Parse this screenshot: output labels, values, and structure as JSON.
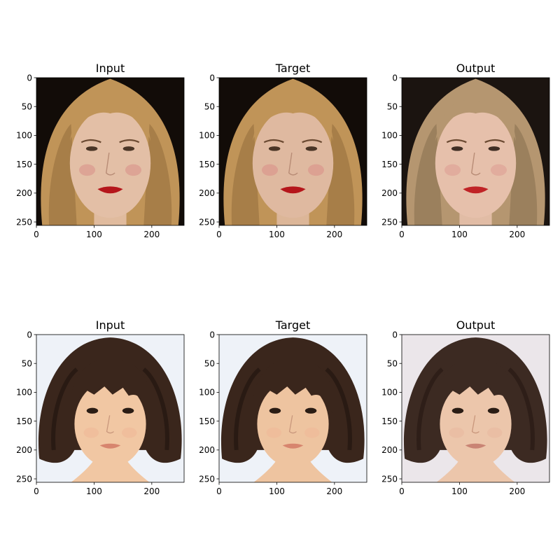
{
  "figure": {
    "rows": [
      {
        "panels": [
          {
            "title": "Input",
            "palette": {
              "bg": "#120c08",
              "hair": "#c09458",
              "hair_dark": "#8a6436",
              "skin": "#e3bfa6",
              "lips": "#b5161b",
              "eyes": "#4a3526",
              "cheek": "#d98e86"
            }
          },
          {
            "title": "Target",
            "palette": {
              "bg": "#120c08",
              "hair": "#c09458",
              "hair_dark": "#8a6436",
              "skin": "#dfb9a0",
              "lips": "#b5161b",
              "eyes": "#4a3526",
              "cheek": "#d98e86"
            }
          },
          {
            "title": "Output",
            "palette": {
              "bg": "#1b1410",
              "hair": "#b59670",
              "hair_dark": "#7d6548",
              "skin": "#e6c0ab",
              "lips": "#c02326",
              "eyes": "#3f2e24",
              "cheek": "#dd9a92"
            }
          }
        ]
      },
      {
        "panels": [
          {
            "title": "Input",
            "palette": {
              "bg": "#eef2f8",
              "hair": "#3a261c",
              "hair_dark": "#1e130d",
              "skin": "#f1c7a3",
              "lips": "#d7856e",
              "eyes": "#2a1c14",
              "cheek": "#efb596"
            }
          },
          {
            "title": "Target",
            "palette": {
              "bg": "#eef2f8",
              "hair": "#3a261c",
              "hair_dark": "#1e130d",
              "skin": "#eec4a0",
              "lips": "#d7856e",
              "eyes": "#2a1c14",
              "cheek": "#efb596"
            }
          },
          {
            "title": "Output",
            "palette": {
              "bg": "#ebe6ea",
              "hair": "#3c2a22",
              "hair_dark": "#241812",
              "skin": "#ecc6ab",
              "lips": "#c98474",
              "eyes": "#2a1c14",
              "cheek": "#e8b69e"
            }
          }
        ]
      }
    ]
  },
  "chart_data": {
    "type": "image-grid",
    "xlim": [
      0,
      256
    ],
    "ylim": [
      256,
      0
    ],
    "xticks": [
      0,
      100,
      200
    ],
    "yticks": [
      0,
      50,
      100,
      150,
      200,
      250
    ]
  }
}
